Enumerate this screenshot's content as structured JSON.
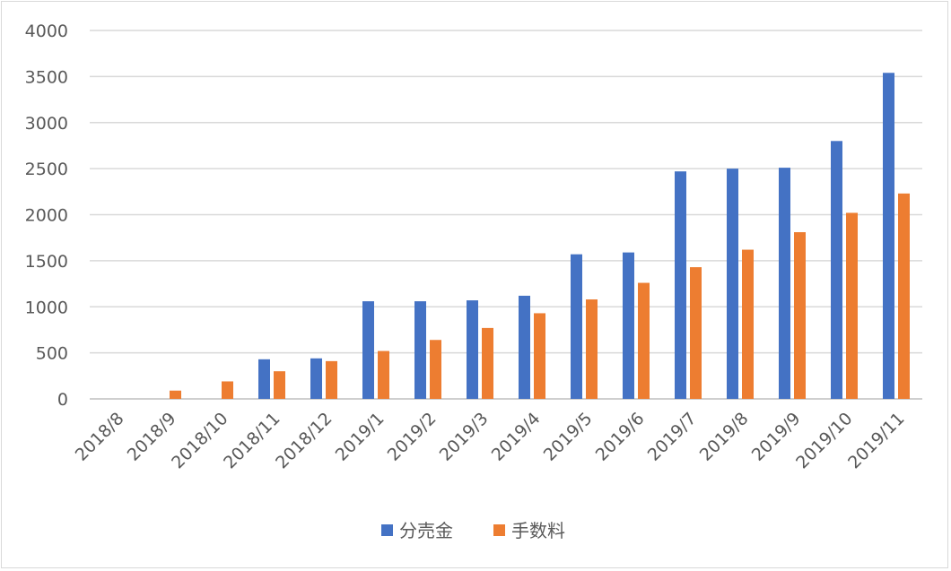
{
  "chart_data": {
    "type": "bar",
    "categories": [
      "2018/8",
      "2018/9",
      "2018/10",
      "2018/11",
      "2018/12",
      "2019/1",
      "2019/2",
      "2019/3",
      "2019/4",
      "2019/5",
      "2019/6",
      "2019/7",
      "2019/8",
      "2019/9",
      "2019/10",
      "2019/11"
    ],
    "series": [
      {
        "name": "分売金",
        "color": "#4472C4",
        "values": [
          0,
          0,
          0,
          430,
          440,
          1060,
          1060,
          1070,
          1120,
          1570,
          1590,
          2470,
          2500,
          2510,
          2800,
          3540
        ]
      },
      {
        "name": "手数料",
        "color": "#ED7D31",
        "values": [
          0,
          90,
          190,
          300,
          410,
          520,
          640,
          770,
          930,
          1080,
          1260,
          1430,
          1620,
          1810,
          2020,
          2230
        ]
      }
    ],
    "yticks": [
      0,
      500,
      1000,
      1500,
      2000,
      2500,
      3000,
      3500,
      4000
    ],
    "ylim": [
      0,
      4000
    ],
    "grid": true,
    "legend_position": "bottom"
  }
}
